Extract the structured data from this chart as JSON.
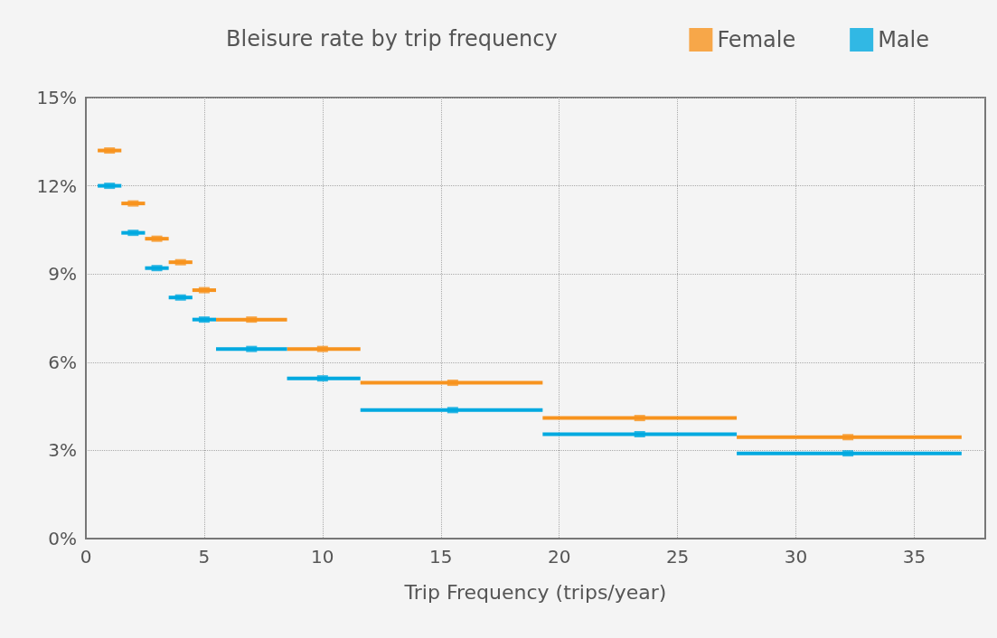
{
  "chart_data": {
    "type": "scatter",
    "title": "Bleisure rate by trip frequency",
    "xlabel": "Trip Frequency (trips/year)",
    "xlim": [
      0,
      38
    ],
    "xticks": [
      0,
      5,
      10,
      15,
      20,
      25,
      30,
      35
    ],
    "ylim": [
      0,
      15
    ],
    "yticks": [
      {
        "value": 0,
        "label": "0%"
      },
      {
        "value": 3,
        "label": "3%"
      },
      {
        "value": 6,
        "label": "6%"
      },
      {
        "value": 9,
        "label": "9%"
      },
      {
        "value": 12,
        "label": "12%"
      },
      {
        "value": 15,
        "label": "15%"
      }
    ],
    "grid": true,
    "legend": "top right",
    "marker": "square",
    "series": [
      {
        "name": "Female",
        "color": "#f7931e",
        "x": [
          1,
          2,
          3,
          4,
          5,
          7,
          10,
          15.5,
          23.4,
          32.2
        ],
        "values": [
          13.2,
          11.4,
          10.2,
          9.4,
          8.45,
          7.45,
          6.45,
          5.3,
          4.1,
          3.45
        ],
        "xerrors": [
          [
            0.5,
            1.5
          ],
          [
            1.5,
            2.5
          ],
          [
            2.5,
            3.5
          ],
          [
            3.5,
            4.5
          ],
          [
            4.5,
            5.5
          ],
          [
            5.5,
            8.5
          ],
          [
            8.5,
            11.6
          ],
          [
            11.6,
            19.3
          ],
          [
            19.3,
            27.5
          ],
          [
            27.5,
            37
          ]
        ]
      },
      {
        "name": "Male",
        "color": "#00a9e0",
        "x": [
          1,
          2,
          3,
          4,
          5,
          7,
          10,
          15.5,
          23.4,
          32.2
        ],
        "values": [
          12.0,
          10.4,
          9.2,
          8.2,
          7.45,
          6.45,
          5.45,
          4.37,
          3.55,
          2.9
        ],
        "xerrors": [
          [
            0.5,
            1.5
          ],
          [
            1.5,
            2.5
          ],
          [
            2.5,
            3.5
          ],
          [
            3.5,
            4.5
          ],
          [
            4.5,
            5.5
          ],
          [
            5.5,
            8.5
          ],
          [
            8.5,
            11.6
          ],
          [
            11.6,
            19.3
          ],
          [
            19.3,
            27.5
          ],
          [
            27.5,
            37
          ]
        ]
      }
    ]
  }
}
